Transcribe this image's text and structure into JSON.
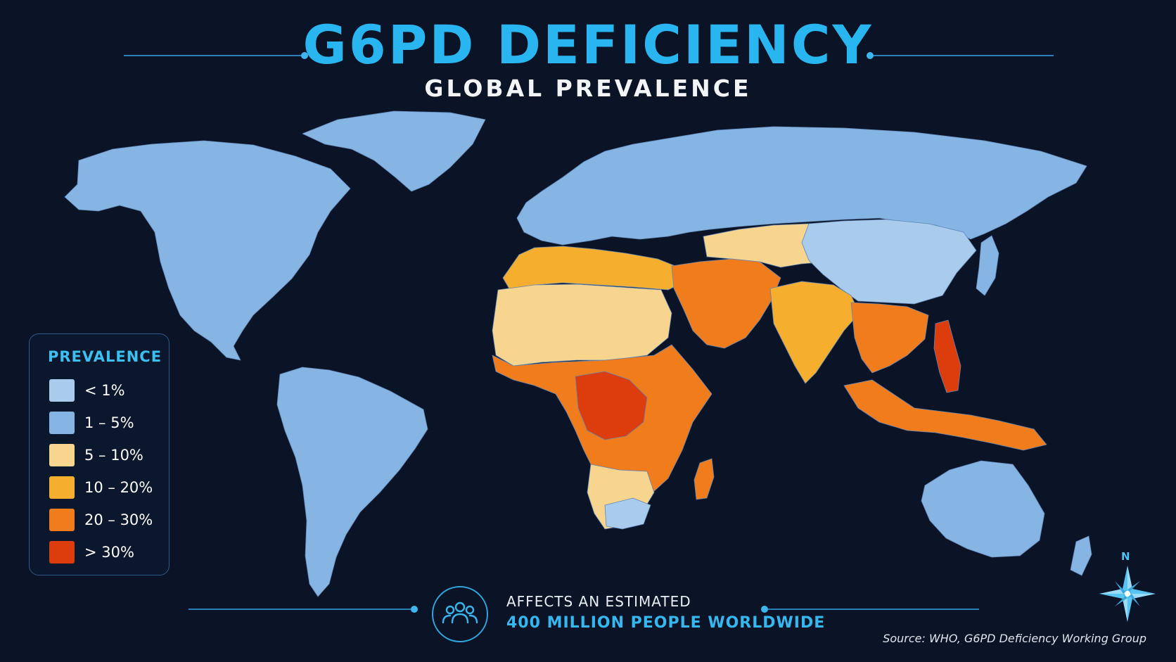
{
  "title": "G6PD DEFICIENCY",
  "subtitle": "GLOBAL PREVALENCE",
  "legend": {
    "title": "PREVALENCE",
    "items": [
      {
        "label": "< 1%",
        "color": "#a9cbec"
      },
      {
        "label": "1 – 5%",
        "color": "#86b4e3"
      },
      {
        "label": "5 – 10%",
        "color": "#f8d58f"
      },
      {
        "label": "10 – 20%",
        "color": "#f6ae2f"
      },
      {
        "label": "20 – 30%",
        "color": "#f07c1c"
      },
      {
        "label": "> 30%",
        "color": "#dd3d0c"
      }
    ]
  },
  "footer": {
    "line1": "AFFECTS AN ESTIMATED",
    "line2": "400 MILLION PEOPLE WORLDWIDE",
    "icon": "people-group-icon"
  },
  "source": "Source: WHO, G6PD Deficiency Working Group",
  "compass": {
    "label": "N",
    "icon": "compass-rose-icon"
  },
  "regions": [
    {
      "name": "north-america",
      "category": "1 – 5%"
    },
    {
      "name": "greenland",
      "category": "1 – 5%"
    },
    {
      "name": "south-america",
      "category": "1 – 5%"
    },
    {
      "name": "northern-europe-russia",
      "category": "1 – 5%"
    },
    {
      "name": "north-africa-mediterranean",
      "category": "10 – 20%"
    },
    {
      "name": "sahara",
      "category": "5 – 10%"
    },
    {
      "name": "sub-saharan-africa",
      "category": "20 – 30%"
    },
    {
      "name": "central-africa-core",
      "category": "> 30%"
    },
    {
      "name": "southern-africa",
      "category": "5 – 10%"
    },
    {
      "name": "south-africa",
      "category": "< 1%"
    },
    {
      "name": "madagascar",
      "category": "20 – 30%"
    },
    {
      "name": "arabian-peninsula",
      "category": "20 – 30%"
    },
    {
      "name": "south-asia",
      "category": "10 – 20%"
    },
    {
      "name": "central-asia",
      "category": "5 – 10%"
    },
    {
      "name": "china",
      "category": "< 1%"
    },
    {
      "name": "southeast-asia",
      "category": "20 – 30%"
    },
    {
      "name": "philippines",
      "category": "> 30%"
    },
    {
      "name": "indonesia-png",
      "category": "20 – 30%"
    },
    {
      "name": "japan",
      "category": "1 – 5%"
    },
    {
      "name": "australia",
      "category": "1 – 5%"
    },
    {
      "name": "new-zealand",
      "category": "1 – 5%"
    }
  ]
}
